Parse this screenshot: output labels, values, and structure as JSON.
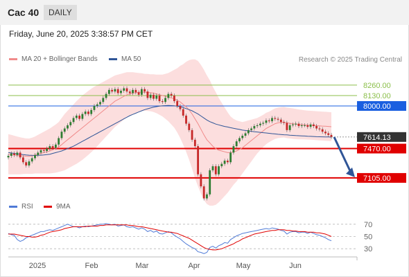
{
  "header": {
    "title": "Cac 40",
    "period": "DAILY"
  },
  "datetime": "Friday, June 20, 2025 3:38:57 PM CET",
  "legend": {
    "bollinger": {
      "label": "MA 20 + Bollinger Bands",
      "color": "#f08a8a"
    },
    "ma50": {
      "label": "MA 50",
      "color": "#2f5597"
    },
    "rsi": {
      "label": "RSI",
      "color": "#4f7ad6"
    },
    "rsi_ma": {
      "label": "9MA",
      "color": "#e00000"
    }
  },
  "copyright": "Research © 2025 Trading Central",
  "chart_data": [
    {
      "type": "candlestick",
      "title": "Cac 40",
      "ylim": [
        6820,
        8500
      ],
      "x_ticks": [
        "2025",
        "Feb",
        "Mar",
        "Apr",
        "May",
        "Jun"
      ],
      "last_price": {
        "value": "7614.13",
        "color": "#333333"
      },
      "levels": [
        {
          "value": 8260,
          "label": "8260.00",
          "kind": "resistance-far",
          "color": "#8bbf4a"
        },
        {
          "value": 8130,
          "label": "8130.00",
          "kind": "resistance-far",
          "color": "#8bbf4a"
        },
        {
          "value": 8000,
          "label": "8000.00",
          "kind": "pivot",
          "color": "#1a5fe0"
        },
        {
          "value": 7470,
          "label": "7470.00",
          "kind": "support",
          "color": "#e00000"
        },
        {
          "value": 7105,
          "label": "7105.00",
          "kind": "support",
          "color": "#e00000"
        }
      ],
      "close_series": [
        7380,
        7410,
        7390,
        7420,
        7360,
        7300,
        7260,
        7310,
        7350,
        7390,
        7420,
        7450,
        7440,
        7470,
        7500,
        7480,
        7520,
        7600,
        7680,
        7720,
        7760,
        7800,
        7850,
        7880,
        7840,
        7900,
        7930,
        7900,
        7950,
        8000,
        8020,
        8050,
        8100,
        8150,
        8200,
        8180,
        8210,
        8160,
        8190,
        8220,
        8180,
        8160,
        8200,
        8170,
        8140,
        8210,
        8180,
        8100,
        8140,
        8090,
        8130,
        8060,
        8050,
        8100,
        8150,
        8130,
        8060,
        8000,
        7960,
        7880,
        7780,
        7700,
        7580,
        7500,
        7150,
        7000,
        6850,
        6900,
        7200,
        7250,
        7150,
        7250,
        7280,
        7320,
        7300,
        7420,
        7500,
        7560,
        7600,
        7630,
        7660,
        7700,
        7720,
        7750,
        7760,
        7780,
        7790,
        7820,
        7810,
        7850,
        7840,
        7830,
        7800,
        7790,
        7700,
        7760,
        7770,
        7780,
        7750,
        7760,
        7760,
        7740,
        7770,
        7750,
        7720,
        7710,
        7680,
        7660,
        7640,
        7614
      ],
      "ma20": [
        7400,
        7395,
        7390,
        7385,
        7380,
        7378,
        7376,
        7375,
        7380,
        7390,
        7400,
        7410,
        7420,
        7430,
        7440,
        7455,
        7470,
        7490,
        7520,
        7550,
        7580,
        7610,
        7640,
        7670,
        7700,
        7730,
        7760,
        7790,
        7820,
        7850,
        7880,
        7910,
        7940,
        7970,
        8000,
        8030,
        8060,
        8080,
        8100,
        8120,
        8140,
        8150,
        8160,
        8165,
        8170,
        8172,
        8170,
        8168,
        8165,
        8160,
        8150,
        8140,
        8130,
        8120,
        8110,
        8100,
        8090,
        8070,
        8050,
        8020,
        7990,
        7950,
        7900,
        7840,
        7780,
        7710,
        7640,
        7580,
        7540,
        7500,
        7470,
        7450,
        7440,
        7430,
        7420,
        7420,
        7430,
        7440,
        7460,
        7480,
        7510,
        7540,
        7570,
        7600,
        7630,
        7660,
        7690,
        7720,
        7740,
        7760,
        7780,
        7790,
        7795,
        7798,
        7790,
        7785,
        7780,
        7775,
        7770,
        7768,
        7765,
        7762,
        7760,
        7758,
        7755,
        7752,
        7750,
        7748,
        7745,
        7742
      ],
      "ma50": [
        7420,
        7415,
        7410,
        7405,
        7400,
        7395,
        7390,
        7388,
        7386,
        7385,
        7386,
        7388,
        7390,
        7395,
        7400,
        7410,
        7420,
        7430,
        7440,
        7455,
        7470,
        7485,
        7500,
        7520,
        7540,
        7560,
        7580,
        7600,
        7620,
        7640,
        7660,
        7680,
        7700,
        7720,
        7740,
        7760,
        7780,
        7800,
        7820,
        7840,
        7860,
        7880,
        7895,
        7910,
        7925,
        7940,
        7955,
        7965,
        7975,
        7985,
        7992,
        7998,
        8002,
        8005,
        8006,
        8005,
        8002,
        7998,
        7990,
        7980,
        7968,
        7955,
        7940,
        7920,
        7900,
        7875,
        7850,
        7825,
        7805,
        7790,
        7775,
        7765,
        7755,
        7745,
        7738,
        7730,
        7722,
        7715,
        7708,
        7700,
        7695,
        7690,
        7685,
        7680,
        7676,
        7672,
        7668,
        7664,
        7660,
        7656,
        7652,
        7648,
        7645,
        7642,
        7640,
        7637,
        7634,
        7632,
        7630,
        7628,
        7626,
        7624,
        7622,
        7620,
        7618,
        7617,
        7616,
        7615,
        7614,
        7613
      ],
      "bb_width": [
        250,
        245,
        240,
        235,
        230,
        225,
        220,
        220,
        225,
        230,
        240,
        250,
        260,
        270,
        280,
        290,
        300,
        310,
        330,
        350,
        360,
        370,
        380,
        390,
        395,
        400,
        400,
        398,
        395,
        390,
        380,
        370,
        360,
        350,
        340,
        330,
        320,
        310,
        300,
        290,
        280,
        270,
        260,
        250,
        240,
        235,
        230,
        230,
        230,
        235,
        240,
        250,
        260,
        280,
        300,
        330,
        360,
        400,
        450,
        500,
        560,
        620,
        680,
        740,
        780,
        800,
        810,
        800,
        780,
        740,
        700,
        650,
        600,
        550,
        500,
        450,
        410,
        380,
        350,
        320,
        300,
        280,
        260,
        240,
        220,
        210,
        200,
        195,
        190,
        190,
        190,
        190,
        190,
        190,
        190,
        190,
        190,
        188,
        186,
        184,
        182,
        180,
        180,
        180,
        180,
        180,
        180,
        180,
        180,
        180
      ],
      "projection": {
        "from": 7614,
        "to": 7105,
        "color": "#2f5597"
      }
    },
    {
      "type": "line",
      "name": "RSI panel",
      "ylim": [
        20,
        80
      ],
      "y_ticks": [
        "70",
        "50",
        "30"
      ],
      "y_tick_values": [
        70,
        50,
        30
      ],
      "rsi": [
        55,
        53,
        52,
        45,
        42,
        44,
        48,
        50,
        52,
        54,
        56,
        58,
        58,
        60,
        61,
        60,
        62,
        64,
        66,
        68,
        70,
        68,
        66,
        66,
        64,
        66,
        67,
        66,
        67,
        68,
        69,
        70,
        70,
        71,
        70,
        69,
        70,
        67,
        68,
        69,
        66,
        65,
        66,
        64,
        62,
        64,
        62,
        58,
        60,
        57,
        59,
        55,
        54,
        56,
        58,
        56,
        52,
        49,
        46,
        42,
        38,
        35,
        32,
        30,
        25,
        24,
        22,
        24,
        32,
        34,
        31,
        35,
        37,
        40,
        39,
        45,
        48,
        51,
        53,
        55,
        56,
        57,
        58,
        59,
        60,
        61,
        62,
        63,
        62,
        64,
        63,
        62,
        60,
        59,
        54,
        57,
        58,
        58,
        56,
        57,
        57,
        55,
        57,
        55,
        53,
        52,
        50,
        48,
        45,
        43
      ],
      "rsi_ma": [
        54,
        54,
        54,
        53,
        52,
        51,
        50,
        50,
        49,
        49,
        50,
        52,
        53,
        55,
        57,
        58,
        59,
        60,
        61,
        63,
        64,
        65,
        66,
        66,
        66,
        66,
        66,
        67,
        67,
        67,
        67,
        68,
        68,
        69,
        69,
        69,
        69,
        69,
        69,
        69,
        69,
        68,
        68,
        67,
        66,
        66,
        65,
        64,
        63,
        62,
        61,
        60,
        59,
        58,
        57,
        57,
        56,
        55,
        53,
        51,
        49,
        47,
        44,
        41,
        38,
        35,
        32,
        30,
        29,
        28,
        28,
        29,
        30,
        32,
        34,
        36,
        38,
        41,
        43,
        46,
        48,
        50,
        52,
        54,
        55,
        56,
        57,
        58,
        59,
        60,
        60,
        61,
        61,
        61,
        60,
        60,
        59,
        59,
        58,
        58,
        58,
        57,
        57,
        57,
        56,
        56,
        55,
        54,
        52,
        50
      ]
    }
  ]
}
